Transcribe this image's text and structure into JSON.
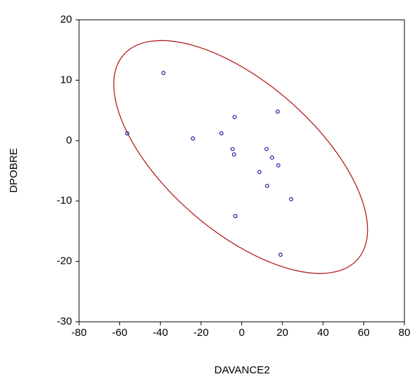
{
  "chart_data": {
    "type": "scatter",
    "x_label": "DAVANCE2",
    "y_label": "DPOBRE",
    "xlim": [
      -80,
      80
    ],
    "xticks": [
      -80,
      -60,
      -40,
      -20,
      0,
      20,
      40,
      60,
      80
    ],
    "ylim": [
      -30,
      20
    ],
    "yticks": [
      -30,
      -20,
      -10,
      0,
      10,
      20
    ],
    "color": "#1f1f9e",
    "x": [
      -38.5,
      -56.3,
      -24,
      -10,
      -3.5,
      17.7,
      -4.5,
      -3.8,
      12.2,
      14.9,
      18,
      8.7,
      12.5,
      24.3,
      -3.1,
      19.1
    ],
    "y": [
      11.2,
      1.2,
      0.35,
      1.2,
      3.9,
      4.8,
      -1.4,
      -2.3,
      -1.4,
      -2.8,
      -4.1,
      -5.2,
      -7.5,
      -9.7,
      -12.5,
      -18.9
    ]
  }
}
